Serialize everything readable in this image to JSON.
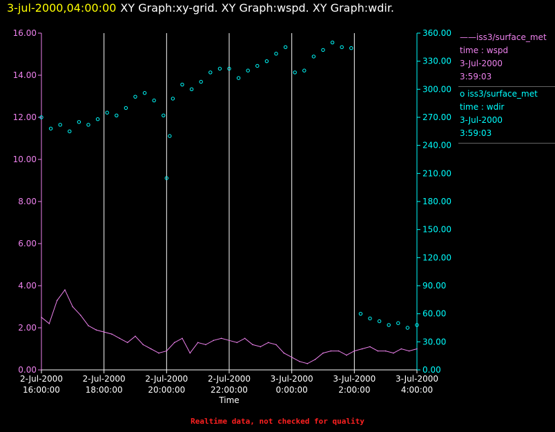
{
  "header": {
    "date_time": "3-jul-2000,04:00:00",
    "graphs": "XY Graph:xy-grid.  XY Graph:wspd.  XY Graph:wdir."
  },
  "legend": [
    {
      "marker": "——",
      "label": "iss3/surface_met",
      "field": "time : wspd",
      "date": "3-Jul-2000",
      "time": "3:59:03",
      "color": "#ee82ee"
    },
    {
      "marker": "o",
      "label": "iss3/surface_met",
      "field": "time : wdir",
      "date": "3-Jul-2000",
      "time": "3:59:03",
      "color": "#00ffff"
    }
  ],
  "footer": {
    "notice": "Realtime data, not checked for quality"
  },
  "colors": {
    "wspd": "#ee82ee",
    "wdir": "#00ffff",
    "grid": "#ffffff",
    "date": "#ffff00",
    "notice": "#ff2020"
  },
  "chart_data": {
    "type": "line",
    "xlabel": "Time",
    "x_range_hours": [
      16,
      28
    ],
    "x_ticks": [
      {
        "date": "2-Jul-2000",
        "time": "16:00:00"
      },
      {
        "date": "2-Jul-2000",
        "time": "18:00:00"
      },
      {
        "date": "2-Jul-2000",
        "time": "20:00:00"
      },
      {
        "date": "2-Jul-2000",
        "time": "22:00:00"
      },
      {
        "date": "3-Jul-2000",
        "time": "0:00:00"
      },
      {
        "date": "3-Jul-2000",
        "time": "2:00:00"
      },
      {
        "date": "3-Jul-2000",
        "time": "4:00:00"
      }
    ],
    "y_left": {
      "label": "wspd",
      "range": [
        0,
        16
      ],
      "ticks": [
        "0.00",
        "2.00",
        "4.00",
        "6.00",
        "8.00",
        "10.00",
        "12.00",
        "14.00",
        "16.00"
      ],
      "color": "#ee82ee"
    },
    "y_right": {
      "label": "wdir",
      "range": [
        0,
        360
      ],
      "ticks": [
        "0.00",
        "30.00",
        "60.00",
        "90.00",
        "120.00",
        "150.00",
        "180.00",
        "210.00",
        "240.00",
        "270.00",
        "300.00",
        "330.00",
        "360.00"
      ],
      "color": "#00ffff"
    },
    "grid": "vertical lines at each x tick",
    "series": [
      {
        "name": "time : wspd",
        "style": "line",
        "color": "#ee82ee",
        "x_hours": [
          16.0,
          16.25,
          16.5,
          16.75,
          17.0,
          17.25,
          17.5,
          17.75,
          18.0,
          18.25,
          18.5,
          18.75,
          19.0,
          19.25,
          19.5,
          19.75,
          20.0,
          20.25,
          20.5,
          20.75,
          21.0,
          21.25,
          21.5,
          21.75,
          22.0,
          22.25,
          22.5,
          22.75,
          23.0,
          23.25,
          23.5,
          23.75,
          24.0,
          24.25,
          24.5,
          24.75,
          25.0,
          25.25,
          25.5,
          25.75,
          26.0,
          26.25,
          26.5,
          26.75,
          27.0,
          27.25,
          27.5,
          27.75,
          28.0
        ],
        "y": [
          2.5,
          2.2,
          3.3,
          3.8,
          3.0,
          2.6,
          2.1,
          1.9,
          1.8,
          1.7,
          1.5,
          1.3,
          1.6,
          1.2,
          1.0,
          0.8,
          0.9,
          1.3,
          1.5,
          0.8,
          1.3,
          1.2,
          1.4,
          1.5,
          1.4,
          1.3,
          1.5,
          1.2,
          1.1,
          1.3,
          1.2,
          0.8,
          0.6,
          0.4,
          0.3,
          0.5,
          0.8,
          0.9,
          0.9,
          0.7,
          0.9,
          1.0,
          1.1,
          0.9,
          0.9,
          0.8,
          1.0,
          0.9,
          1.0
        ]
      },
      {
        "name": "time : wdir",
        "style": "markers",
        "color": "#00ffff",
        "x_hours": [
          16.0,
          16.3,
          16.6,
          16.9,
          17.2,
          17.5,
          17.8,
          18.1,
          18.4,
          18.7,
          19.0,
          19.3,
          19.6,
          19.9,
          20.0,
          20.1,
          20.2,
          20.5,
          20.8,
          21.1,
          21.4,
          21.7,
          22.0,
          22.3,
          22.6,
          22.9,
          23.2,
          23.5,
          23.8,
          24.1,
          24.4,
          24.7,
          25.0,
          25.3,
          25.6,
          25.9,
          26.2,
          26.5,
          26.8,
          27.1,
          27.4,
          27.7,
          28.0
        ],
        "y": [
          270,
          258,
          262,
          255,
          265,
          262,
          268,
          275,
          272,
          280,
          292,
          296,
          288,
          272,
          205,
          250,
          290,
          305,
          300,
          308,
          318,
          322,
          322,
          312,
          320,
          325,
          330,
          338,
          345,
          318,
          320,
          335,
          342,
          350,
          345,
          344,
          60,
          55,
          52,
          48,
          50,
          45,
          48
        ]
      }
    ]
  }
}
